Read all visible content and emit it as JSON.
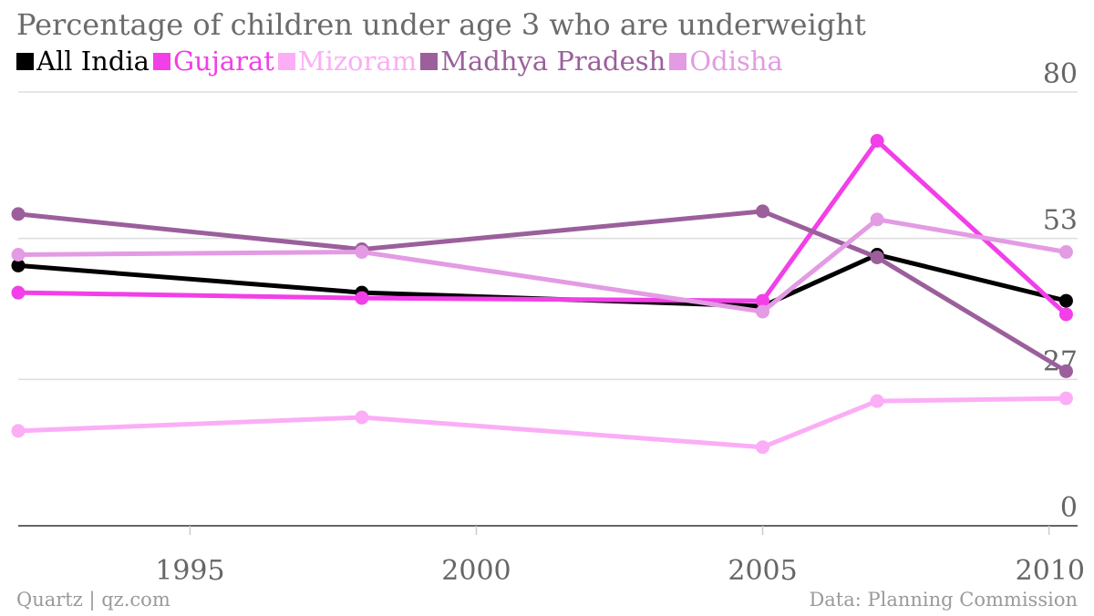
{
  "colors": {
    "all_india": "#000000",
    "gujarat": "#f23fe8",
    "mizoram": "#fbaef6",
    "madhya_pradesh": "#9b5f9b",
    "odisha": "#e39be3"
  },
  "footer": {
    "source_left": "Quartz | qz.com",
    "source_right": "Data: Planning Commission"
  },
  "chart_data": {
    "type": "line",
    "title": "Percentage of children under age 3 who are underweight",
    "xlabel": "",
    "ylabel": "",
    "xlim": [
      1992,
      2010.5
    ],
    "ylim": [
      0,
      80
    ],
    "x_ticks": [
      1995,
      2000,
      2005,
      2010
    ],
    "y_ticks": [
      0,
      27,
      53,
      80
    ],
    "grid": true,
    "legend_position": "top-left",
    "series": [
      {
        "name": "All India",
        "color_key": "all_india",
        "points": [
          [
            1992,
            48
          ],
          [
            1998,
            43
          ],
          [
            2005,
            40.5
          ],
          [
            2007,
            50
          ],
          [
            2010.3,
            41.5
          ]
        ]
      },
      {
        "name": "Gujarat",
        "color_key": "gujarat",
        "points": [
          [
            1992,
            43
          ],
          [
            1998,
            42
          ],
          [
            2005,
            41.5
          ],
          [
            2007,
            71
          ],
          [
            2010.3,
            39
          ]
        ]
      },
      {
        "name": "Mizoram",
        "color_key": "mizoram",
        "points": [
          [
            1992,
            17.5
          ],
          [
            1998,
            20
          ],
          [
            2005,
            14.5
          ],
          [
            2007,
            23
          ],
          [
            2010.3,
            23.5
          ]
        ]
      },
      {
        "name": "Madhya Pradesh",
        "color_key": "madhya_pradesh",
        "points": [
          [
            1992,
            57.5
          ],
          [
            1998,
            51
          ],
          [
            2005,
            58
          ],
          [
            2007,
            49.5
          ],
          [
            2010.3,
            28.5
          ]
        ]
      },
      {
        "name": "Odisha",
        "color_key": "odisha",
        "points": [
          [
            1992,
            50
          ],
          [
            1998,
            50.5
          ],
          [
            2005,
            39.5
          ],
          [
            2007,
            56.5
          ],
          [
            2010.3,
            50.5
          ]
        ]
      }
    ]
  }
}
